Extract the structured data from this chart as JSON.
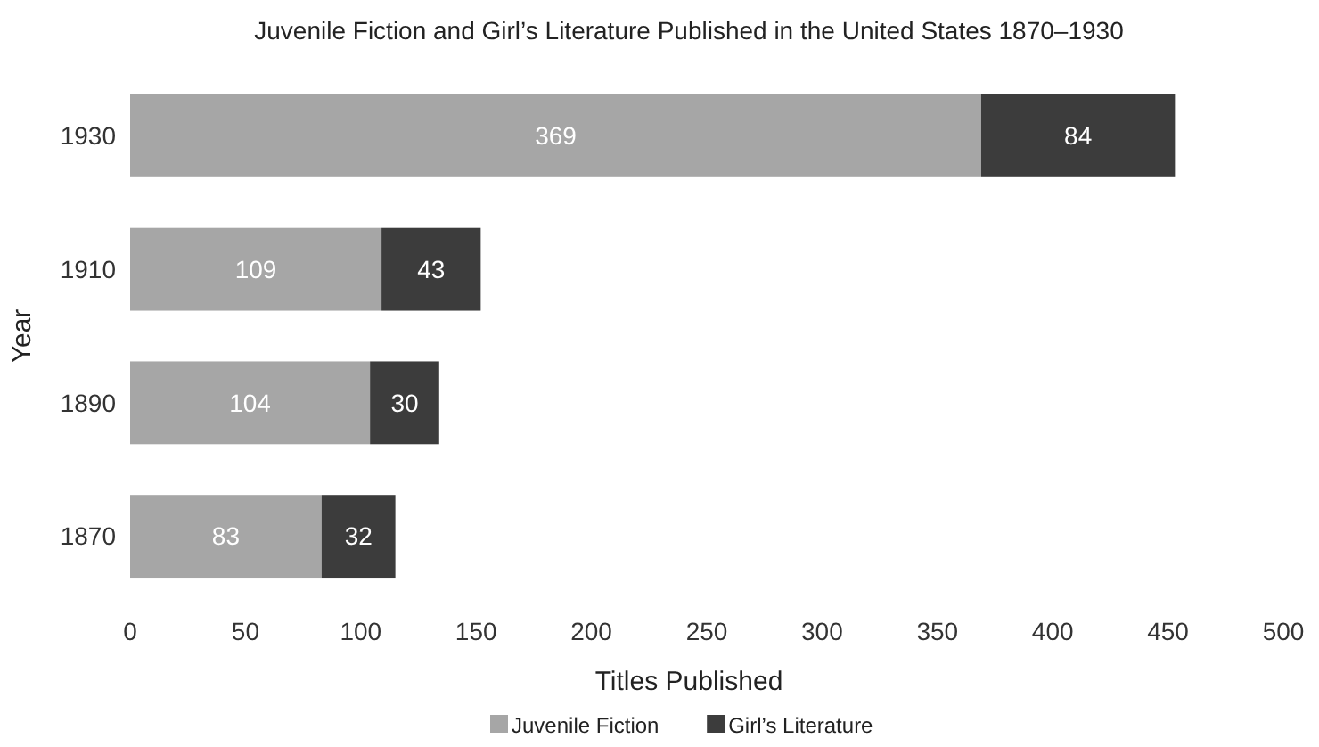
{
  "chart_data": {
    "type": "bar",
    "orientation": "horizontal",
    "stacked": true,
    "title": "Juvenile Fiction and Girl’s Literature Published in the United States 1870–1930",
    "xlabel": "Titles Published",
    "ylabel": "Year",
    "categories": [
      "1930",
      "1910",
      "1890",
      "1870"
    ],
    "series": [
      {
        "name": "Juvenile Fiction",
        "color": "#a6a6a6",
        "values": [
          369,
          109,
          104,
          83
        ]
      },
      {
        "name": "Girl’s Literature",
        "color": "#3c3c3c",
        "values": [
          84,
          43,
          30,
          32
        ]
      }
    ],
    "xlim": [
      0,
      500
    ],
    "xticks": [
      0,
      50,
      100,
      150,
      200,
      250,
      300,
      350,
      400,
      450,
      500
    ],
    "data_labels": true,
    "legend": "bottom"
  }
}
